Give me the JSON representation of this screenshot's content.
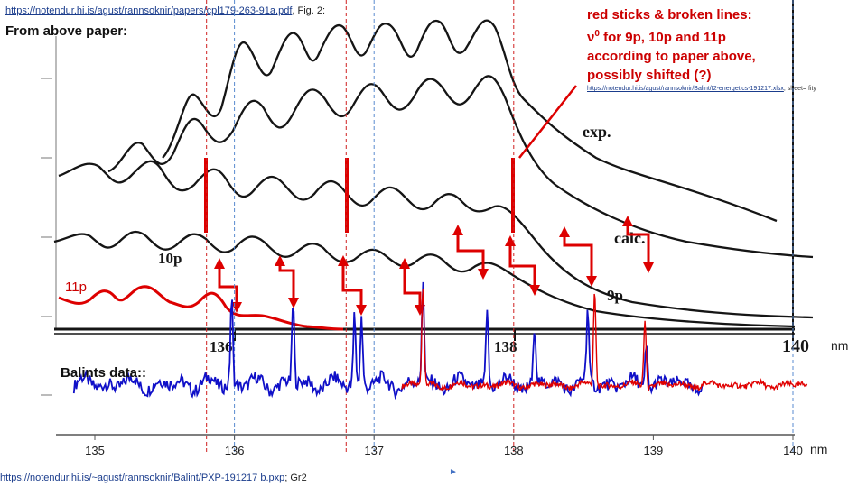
{
  "links": {
    "top_source": "https://notendur.hi.is/agust/rannsoknir/papers/cpl179-263-91a.pdf",
    "top_source_suffix": ", Fig. 2:",
    "mid_source": "https://notendur.hi.is/agust/rannsoknir/Balint/I2-energetics-191217.xlsx",
    "mid_source_suffix": "; sheet= fity",
    "bottom_source": "https://notendur.hi.is/~agust/rannsoknir/Balint/PXP-191217 b.pxp",
    "bottom_source_suffix": "; Gr2"
  },
  "text": {
    "caption_left": "From above paper:",
    "annotation_line1": "red sticks & broken lines:",
    "annotation_nu": "ν",
    "annotation_sup": "0",
    "annotation_line2_rest": " for 9p, 10p and 11p",
    "annotation_line3": "according to paper above,",
    "annotation_line4": "possibly shifted (?)",
    "label_11p": "11p",
    "label_balints": "Balints data::",
    "play_mark": "►"
  },
  "colors": {
    "red": "#e00000",
    "blue": "#1010c8",
    "black": "#111111",
    "grid_red": "#d02020",
    "grid_blue": "#5a8bd0"
  },
  "chart_data": [
    {
      "type": "line",
      "panel": "paper figure (scanned)",
      "series_labels": [
        "exp.",
        "calc.",
        "10p",
        "9p"
      ],
      "x_ticks": [
        136,
        138,
        140
      ],
      "x_unit": "nm",
      "notes_visible": [
        "exp.",
        "calc.",
        "10p",
        "9p"
      ]
    },
    {
      "type": "line",
      "panel": "Balints data",
      "x_ticks": [
        135,
        136,
        137,
        138,
        139,
        140
      ],
      "x_unit": "nm",
      "xlim": [
        134.7,
        140.2
      ],
      "vertical_lines": [
        {
          "x": 135.8,
          "color": "red",
          "style": "dashed"
        },
        {
          "x": 136.0,
          "color": "blue",
          "style": "dashed"
        },
        {
          "x": 136.8,
          "color": "red",
          "style": "dashed"
        },
        {
          "x": 137.0,
          "color": "blue",
          "style": "dashed"
        },
        {
          "x": 138.0,
          "color": "red",
          "style": "dashed"
        },
        {
          "x": 140.0,
          "color": "blue",
          "style": "dashed"
        }
      ],
      "blue_peaks": [
        {
          "x": 135.98,
          "h": 0.85
        },
        {
          "x": 136.42,
          "h": 0.8
        },
        {
          "x": 136.86,
          "h": 0.7
        },
        {
          "x": 136.91,
          "h": 0.65
        },
        {
          "x": 137.35,
          "h": 1.0
        },
        {
          "x": 137.81,
          "h": 0.75
        },
        {
          "x": 138.15,
          "h": 0.55
        },
        {
          "x": 138.53,
          "h": 0.7
        },
        {
          "x": 138.95,
          "h": 0.45
        }
      ],
      "red_peaks": [
        {
          "x": 137.35,
          "h": 0.95
        },
        {
          "x": 138.58,
          "h": 0.9
        },
        {
          "x": 138.94,
          "h": 0.65
        }
      ]
    }
  ]
}
